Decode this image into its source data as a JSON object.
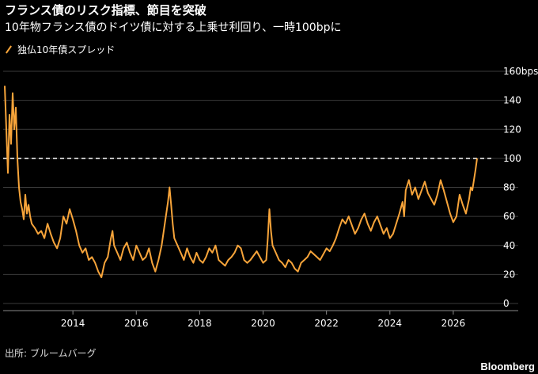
{
  "header": {
    "title": "フランス債のリスク指標、節目を突破",
    "subtitle": "10年物フランス債のドイツ債に対する上乗せ利回り、一時100bpに"
  },
  "legend": {
    "label": "独仏10年債スプレッド",
    "color": "#f7a43a"
  },
  "footer": {
    "source": "出所: ブルームバーグ",
    "brand": "Bloomberg"
  },
  "chart_data": {
    "type": "line",
    "title": "フランス債のリスク指標、節目を突破",
    "xlabel": "",
    "ylabel": "",
    "y_unit": "bps",
    "ylim": [
      0,
      160
    ],
    "yticks": [
      0,
      20,
      40,
      60,
      80,
      100,
      120,
      140,
      160
    ],
    "ytick_labels": [
      "0",
      "20",
      "40",
      "60",
      "80",
      "100",
      "120",
      "140",
      "160bps"
    ],
    "xlim": [
      2011.8,
      2027.3
    ],
    "xticks": [
      2014,
      2016,
      2018,
      2020,
      2022,
      2024,
      2026
    ],
    "xtick_labels": [
      "2014",
      "2016",
      "2018",
      "2020",
      "2022",
      "2024",
      "2026"
    ],
    "grid": true,
    "legend_position": "top-left",
    "reference_line": {
      "y": 100,
      "style": "dashed",
      "color": "#ffffff"
    },
    "series": [
      {
        "name": "独仏10年債スプレッド",
        "color": "#f7a43a",
        "x": [
          2011.85,
          2011.9,
          2011.95,
          2012.0,
          2012.05,
          2012.1,
          2012.15,
          2012.2,
          2012.25,
          2012.3,
          2012.35,
          2012.4,
          2012.45,
          2012.5,
          2012.55,
          2012.6,
          2012.65,
          2012.7,
          2012.8,
          2012.9,
          2013.0,
          2013.1,
          2013.2,
          2013.3,
          2013.4,
          2013.5,
          2013.6,
          2013.7,
          2013.8,
          2013.9,
          2014.0,
          2014.1,
          2014.2,
          2014.3,
          2014.4,
          2014.5,
          2014.6,
          2014.7,
          2014.8,
          2014.9,
          2015.0,
          2015.1,
          2015.2,
          2015.25,
          2015.3,
          2015.4,
          2015.5,
          2015.6,
          2015.7,
          2015.8,
          2015.9,
          2016.0,
          2016.1,
          2016.2,
          2016.3,
          2016.4,
          2016.5,
          2016.6,
          2016.7,
          2016.8,
          2016.9,
          2017.0,
          2017.05,
          2017.1,
          2017.15,
          2017.2,
          2017.3,
          2017.4,
          2017.5,
          2017.6,
          2017.7,
          2017.8,
          2017.9,
          2018.0,
          2018.1,
          2018.2,
          2018.3,
          2018.4,
          2018.5,
          2018.6,
          2018.7,
          2018.8,
          2018.9,
          2019.0,
          2019.1,
          2019.2,
          2019.3,
          2019.4,
          2019.5,
          2019.6,
          2019.7,
          2019.8,
          2019.9,
          2020.0,
          2020.1,
          2020.15,
          2020.2,
          2020.25,
          2020.3,
          2020.4,
          2020.5,
          2020.6,
          2020.7,
          2020.8,
          2020.9,
          2021.0,
          2021.1,
          2021.2,
          2021.3,
          2021.4,
          2021.5,
          2021.6,
          2021.7,
          2021.8,
          2021.9,
          2022.0,
          2022.1,
          2022.2,
          2022.3,
          2022.4,
          2022.5,
          2022.6,
          2022.7,
          2022.8,
          2022.9,
          2023.0,
          2023.1,
          2023.2,
          2023.3,
          2023.4,
          2023.5,
          2023.6,
          2023.7,
          2023.8,
          2023.9,
          2024.0,
          2024.1,
          2024.2,
          2024.3,
          2024.4,
          2024.45,
          2024.5,
          2024.6,
          2024.7,
          2024.8,
          2024.9,
          2025.0,
          2025.1,
          2025.2,
          2025.3,
          2025.4,
          2025.5,
          2025.6,
          2025.7,
          2025.8,
          2025.9,
          2026.0,
          2026.1,
          2026.2,
          2026.3,
          2026.4,
          2026.5,
          2026.55,
          2026.6,
          2026.65,
          2026.7,
          2026.75
        ],
        "values": [
          150,
          120,
          90,
          130,
          110,
          145,
          120,
          135,
          100,
          80,
          70,
          65,
          58,
          75,
          62,
          68,
          60,
          55,
          52,
          48,
          50,
          45,
          55,
          48,
          42,
          38,
          45,
          60,
          55,
          65,
          58,
          50,
          40,
          35,
          38,
          30,
          32,
          28,
          22,
          18,
          28,
          32,
          45,
          50,
          40,
          35,
          30,
          38,
          42,
          35,
          30,
          40,
          35,
          30,
          32,
          38,
          28,
          22,
          30,
          40,
          55,
          70,
          80,
          68,
          55,
          45,
          40,
          35,
          30,
          38,
          32,
          28,
          35,
          30,
          28,
          32,
          38,
          35,
          40,
          30,
          28,
          26,
          30,
          32,
          35,
          40,
          38,
          30,
          28,
          30,
          33,
          36,
          32,
          28,
          30,
          45,
          65,
          50,
          40,
          35,
          30,
          28,
          25,
          30,
          28,
          24,
          22,
          28,
          30,
          32,
          36,
          34,
          32,
          30,
          34,
          38,
          36,
          40,
          45,
          52,
          58,
          55,
          60,
          54,
          48,
          52,
          58,
          62,
          55,
          50,
          56,
          60,
          54,
          48,
          52,
          45,
          48,
          55,
          62,
          70,
          60,
          78,
          85,
          75,
          80,
          72,
          78,
          84,
          76,
          72,
          68,
          75,
          85,
          78,
          70,
          62,
          56,
          60,
          75,
          68,
          62,
          72,
          80,
          78,
          85,
          92,
          100
        ]
      }
    ]
  }
}
